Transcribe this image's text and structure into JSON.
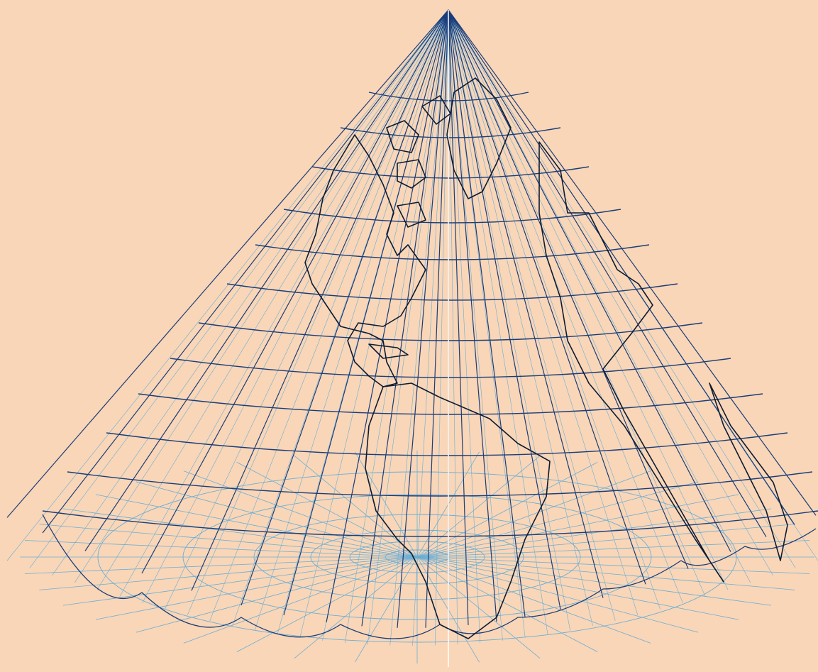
{
  "map": {
    "projection": "conic-lattice",
    "background_color": "#f9d6b7",
    "apex_line_color": "#1a3d7a",
    "lattice_color": "#6aaed6",
    "coast_color": "#0d1b33",
    "meridian_count": 24,
    "parallel_count": 14,
    "features": [
      "graticule-apex-meridians",
      "graticule-parallels",
      "southern-polar-lattice",
      "coastlines"
    ]
  }
}
